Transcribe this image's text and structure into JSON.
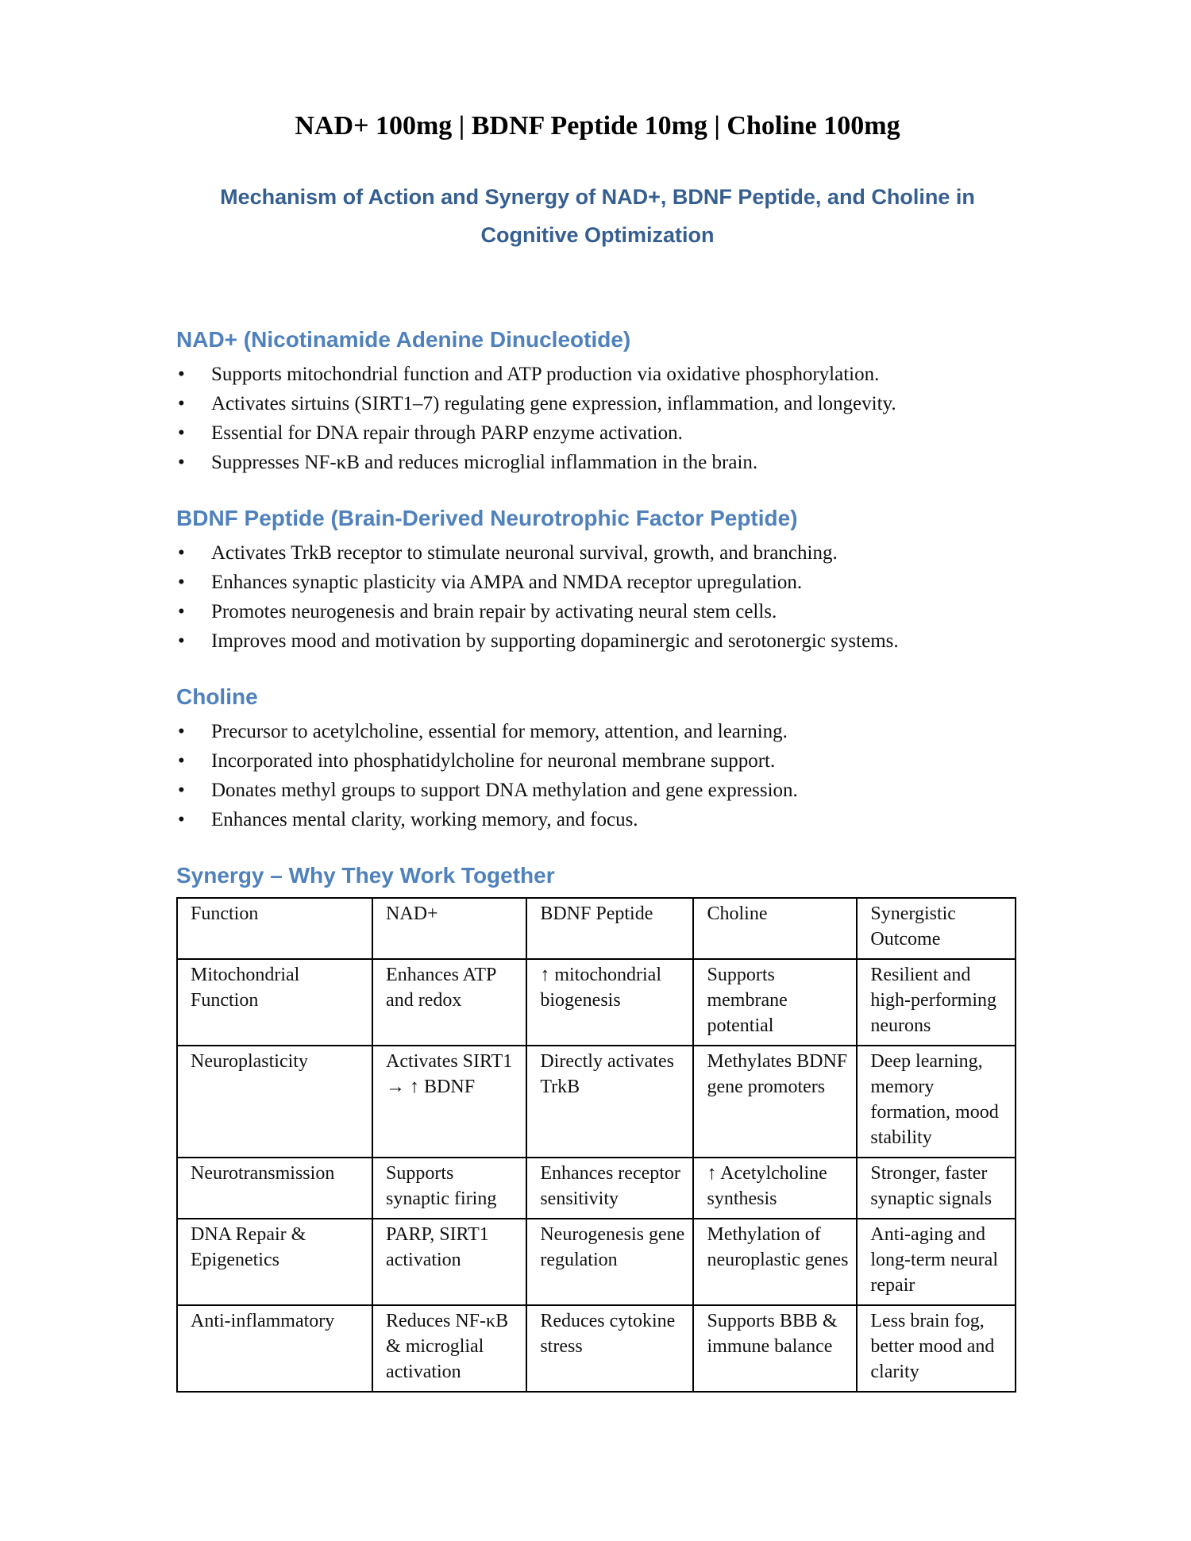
{
  "document": {
    "title": "NAD+ 100mg | BDNF Peptide 10mg | Choline 100mg",
    "subtitle": "Mechanism of Action and Synergy of NAD+, BDNF Peptide, and Choline in Cognitive Optimization",
    "colors": {
      "subtitle_heading": "#365F91",
      "section_heading": "#4F81BD",
      "body_text": "#000000",
      "table_border": "#000000"
    }
  },
  "sections": [
    {
      "heading": "NAD+ (Nicotinamide Adenine Dinucleotide)",
      "bullets": [
        "Supports mitochondrial function and ATP production via oxidative phosphorylation.",
        "Activates sirtuins (SIRT1–7) regulating gene expression, inflammation, and longevity.",
        "Essential for DNA repair through PARP enzyme activation.",
        "Suppresses NF-κB and reduces microglial inflammation in the brain."
      ]
    },
    {
      "heading": "BDNF Peptide (Brain-Derived Neurotrophic Factor Peptide)",
      "bullets": [
        "Activates TrkB receptor to stimulate neuronal survival, growth, and branching.",
        "Enhances synaptic plasticity via AMPA and NMDA receptor upregulation.",
        "Promotes neurogenesis and brain repair by activating neural stem cells.",
        "Improves mood and motivation by supporting dopaminergic and serotonergic systems."
      ]
    },
    {
      "heading": "Choline",
      "bullets": [
        "Precursor to acetylcholine, essential for memory, attention, and learning.",
        "Incorporated into phosphatidylcholine for neuronal membrane support.",
        "Donates methyl groups to support DNA methylation and gene expression.",
        "Enhances mental clarity, working memory, and focus."
      ]
    }
  ],
  "synergy": {
    "heading": "Synergy – Why They Work Together",
    "table": {
      "headers": [
        "Function",
        "NAD+",
        "BDNF Peptide",
        "Choline",
        "Synergistic Outcome"
      ],
      "rows": [
        [
          "Mitochondrial Function",
          "Enhances ATP and redox",
          "↑ mitochondrial biogenesis",
          "Supports membrane potential",
          "Resilient and high-performing neurons"
        ],
        [
          "Neuroplasticity",
          "Activates SIRT1 → ↑ BDNF",
          "Directly activates TrkB",
          "Methylates BDNF gene promoters",
          "Deep learning, memory formation, mood stability"
        ],
        [
          "Neurotransmission",
          "Supports synaptic firing",
          "Enhances receptor sensitivity",
          "↑ Acetylcholine synthesis",
          "Stronger, faster synaptic signals"
        ],
        [
          "DNA Repair & Epigenetics",
          "PARP, SIRT1 activation",
          "Neurogenesis gene regulation",
          "Methylation of neuroplastic genes",
          "Anti-aging and long-term neural repair"
        ],
        [
          "Anti-inflammatory",
          "Reduces NF-κB & microglial activation",
          "Reduces cytokine stress",
          "Supports BBB & immune balance",
          "Less brain fog, better mood and clarity"
        ]
      ]
    }
  }
}
